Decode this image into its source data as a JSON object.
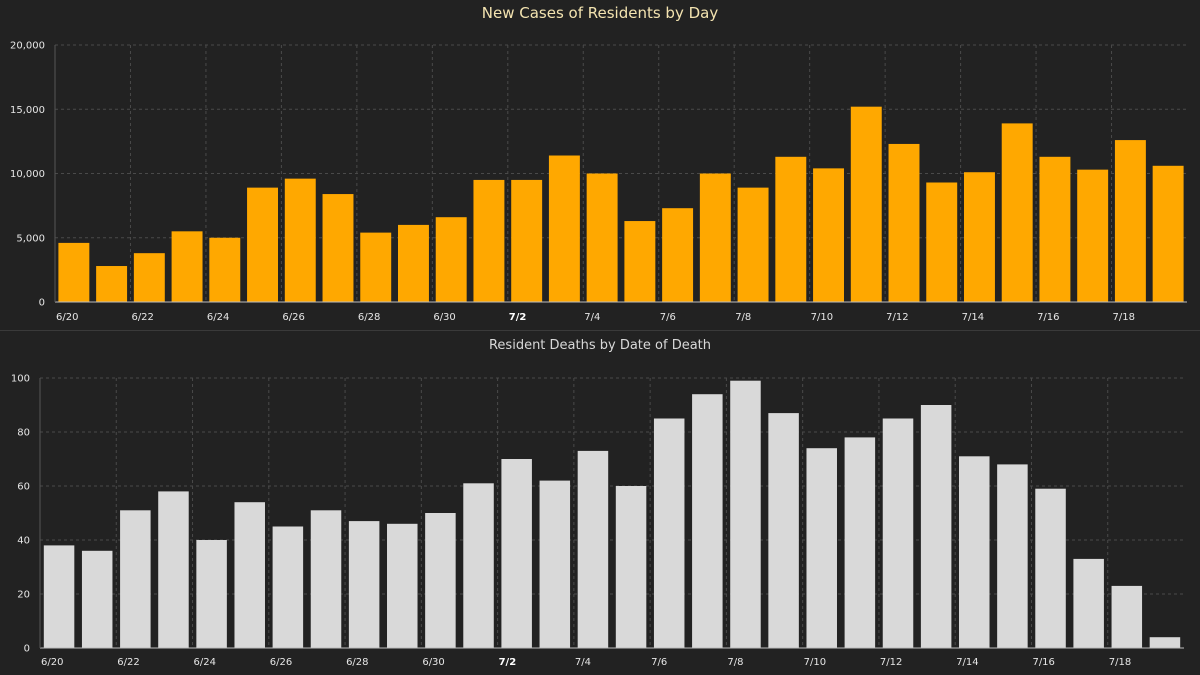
{
  "chart_data": [
    {
      "type": "bar",
      "title": "New Cases of Residents by Day",
      "xlabel": "",
      "ylabel": "",
      "color": "#FFA800",
      "grid_color": "#4a4a4a",
      "ylim": [
        0,
        20000
      ],
      "yticks": [
        0,
        5000,
        10000,
        15000,
        20000
      ],
      "ytick_labels": [
        "0",
        "5,000",
        "10,000",
        "15,000",
        "20,000"
      ],
      "categories": [
        "6/20",
        "6/21",
        "6/22",
        "6/23",
        "6/24",
        "6/25",
        "6/26",
        "6/27",
        "6/28",
        "6/29",
        "6/30",
        "7/1",
        "7/2",
        "7/3",
        "7/4",
        "7/5",
        "7/6",
        "7/7",
        "7/8",
        "7/9",
        "7/10",
        "7/11",
        "7/12",
        "7/13",
        "7/14",
        "7/15",
        "7/16",
        "7/17",
        "7/18",
        "7/19"
      ],
      "values": [
        4600,
        2800,
        3800,
        5500,
        5000,
        8900,
        9600,
        8400,
        5400,
        6000,
        6600,
        9500,
        9500,
        11400,
        10000,
        6300,
        7300,
        10000,
        8900,
        11300,
        10400,
        15200,
        12300,
        9300,
        10100,
        13900,
        11300,
        10300,
        12600,
        10600
      ],
      "xtick_labels": [
        "6/20",
        "6/22",
        "6/24",
        "6/26",
        "6/28",
        "6/30",
        "7/2",
        "7/4",
        "7/6",
        "7/8",
        "7/10",
        "7/12",
        "7/14",
        "7/16",
        "7/18"
      ],
      "bold_tick": "7/2"
    },
    {
      "type": "bar",
      "title": "Resident Deaths by Date of Death",
      "xlabel": "",
      "ylabel": "",
      "color": "#D9D9D9",
      "grid_color": "#4a4a4a",
      "ylim": [
        0,
        100
      ],
      "yticks": [
        0,
        20,
        40,
        60,
        80,
        100
      ],
      "ytick_labels": [
        "0",
        "20",
        "40",
        "60",
        "80",
        "100"
      ],
      "categories": [
        "6/20",
        "6/21",
        "6/22",
        "6/23",
        "6/24",
        "6/25",
        "6/26",
        "6/27",
        "6/28",
        "6/29",
        "6/30",
        "7/1",
        "7/2",
        "7/3",
        "7/4",
        "7/5",
        "7/6",
        "7/7",
        "7/8",
        "7/9",
        "7/10",
        "7/11",
        "7/12",
        "7/13",
        "7/14",
        "7/15",
        "7/16",
        "7/17",
        "7/18",
        "7/19"
      ],
      "values": [
        38,
        36,
        51,
        58,
        40,
        54,
        45,
        51,
        47,
        46,
        50,
        61,
        70,
        62,
        73,
        60,
        85,
        94,
        99,
        87,
        74,
        78,
        85,
        90,
        71,
        68,
        59,
        33,
        23,
        4
      ],
      "xtick_labels": [
        "6/20",
        "6/22",
        "6/24",
        "6/26",
        "6/28",
        "6/30",
        "7/2",
        "7/4",
        "7/6",
        "7/8",
        "7/10",
        "7/12",
        "7/14",
        "7/16",
        "7/18"
      ],
      "bold_tick": "7/2"
    }
  ]
}
